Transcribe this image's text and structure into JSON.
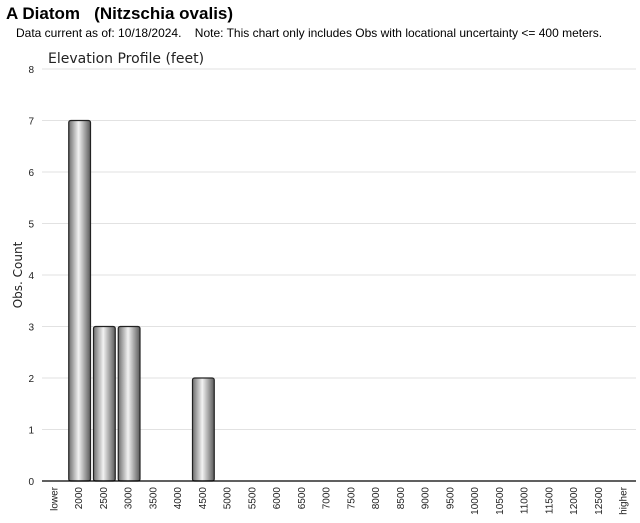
{
  "header": {
    "title": "A Diatom   (Nitzschia ovalis)",
    "subtitle": "Data current as of: 10/18/2024.    Note: This chart only includes Obs with locational uncertainty <= 400 meters."
  },
  "chart_data": {
    "type": "bar",
    "title": "Elevation Profile (feet)",
    "xlabel": "",
    "ylabel": "Obs. Count",
    "ylim": [
      0,
      8
    ],
    "yticks": [
      0,
      1,
      2,
      3,
      4,
      5,
      6,
      7,
      8
    ],
    "grid": true,
    "categories": [
      "lower",
      "2000",
      "2500",
      "3000",
      "3500",
      "4000",
      "4500",
      "5000",
      "5500",
      "6000",
      "6500",
      "7000",
      "7500",
      "8000",
      "8500",
      "9000",
      "9500",
      "10000",
      "10500",
      "11000",
      "11500",
      "12000",
      "12500",
      "higher"
    ],
    "values": [
      0,
      7,
      3,
      3,
      0,
      0,
      2,
      0,
      0,
      0,
      0,
      0,
      0,
      0,
      0,
      0,
      0,
      0,
      0,
      0,
      0,
      0,
      0,
      0
    ],
    "colors": {
      "bar_fill": "#b8b8b8",
      "bar_edge": "#222222",
      "grid": "#e2e2e2",
      "axis": "#000000"
    }
  }
}
